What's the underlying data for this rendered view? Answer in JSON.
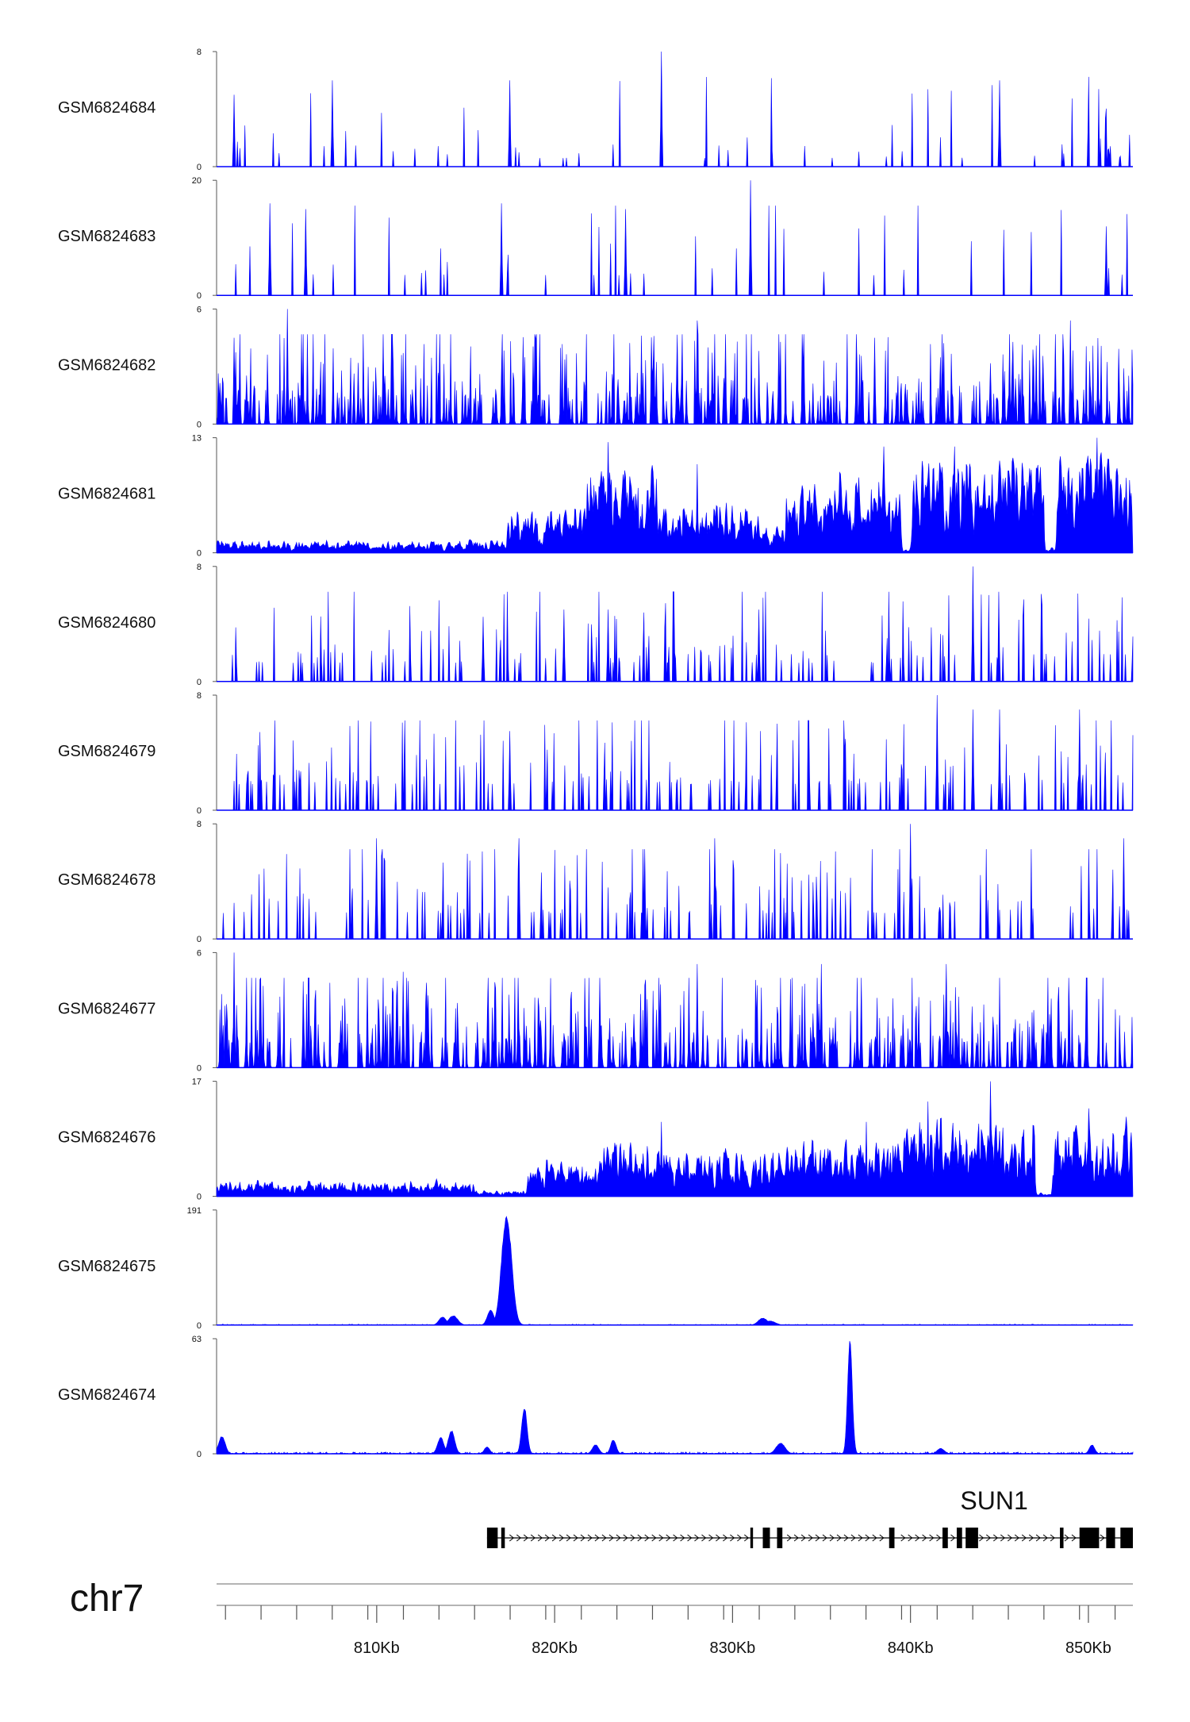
{
  "chart_data": {
    "type": "area",
    "title": "",
    "chromosome": "chr7",
    "xlim": [
      801000,
      852500
    ],
    "x_axis": {
      "ticks": [
        {
          "pos": 810000,
          "label": "810Kb"
        },
        {
          "pos": 820000,
          "label": "820Kb"
        },
        {
          "pos": 830000,
          "label": "830Kb"
        },
        {
          "pos": 840000,
          "label": "840Kb"
        },
        {
          "pos": 850000,
          "label": "850Kb"
        }
      ],
      "minor_ticks": [
        801500,
        803500,
        805500,
        807500,
        809500,
        811500,
        813500,
        815500,
        817500,
        819500,
        821500,
        823500,
        825500,
        827500,
        829500,
        831500,
        833500,
        835500,
        837500,
        839500,
        841500,
        843500,
        845500,
        847500,
        849500,
        851500
      ]
    },
    "gene": {
      "name": "SUN1",
      "start": 816200,
      "end": 852500,
      "strand": "+",
      "exons": [
        {
          "start": 816200,
          "end": 816800
        },
        {
          "start": 817000,
          "end": 817200
        },
        {
          "start": 831000,
          "end": 831150
        },
        {
          "start": 831700,
          "end": 832100
        },
        {
          "start": 832500,
          "end": 832800
        },
        {
          "start": 838800,
          "end": 839100
        },
        {
          "start": 841800,
          "end": 842100
        },
        {
          "start": 842600,
          "end": 842900
        },
        {
          "start": 843100,
          "end": 843800
        },
        {
          "start": 848400,
          "end": 848600
        },
        {
          "start": 849500,
          "end": 850600
        },
        {
          "start": 851000,
          "end": 851500
        },
        {
          "start": 851800,
          "end": 852500
        }
      ]
    },
    "series": [
      {
        "name": "GSM6824684",
        "ymax_label": "8",
        "ymin_label": "0",
        "ylim": [
          0,
          8
        ],
        "pattern": "sparse",
        "density": 0.06,
        "base": 0.6,
        "peaks": [
          [
            826000,
            8
          ],
          [
            845000,
            6
          ],
          [
            817500,
            6
          ],
          [
            807500,
            6
          ],
          [
            802000,
            5
          ]
        ]
      },
      {
        "name": "GSM6824683",
        "ymax_label": "20",
        "ymin_label": "0",
        "ylim": [
          0,
          20
        ],
        "pattern": "sparse",
        "density": 0.045,
        "base": 3.5,
        "peaks": [
          [
            831000,
            20
          ],
          [
            804000,
            16
          ],
          [
            817000,
            16
          ],
          [
            824000,
            15
          ],
          [
            806000,
            15
          ],
          [
            851000,
            12
          ]
        ]
      },
      {
        "name": "GSM6824682",
        "ymax_label": "6",
        "ymin_label": "0",
        "ylim": [
          0,
          6
        ],
        "pattern": "dense",
        "density": 0.3,
        "base": 1.2,
        "peaks": [
          [
            805000,
            6
          ],
          [
            828000,
            5.4
          ],
          [
            849000,
            5.4
          ],
          [
            802000,
            4.5
          ],
          [
            838000,
            4.5
          ]
        ]
      },
      {
        "name": "GSM6824681",
        "ymax_label": "13",
        "ymin_label": "0",
        "ylim": [
          0,
          13
        ],
        "pattern": "regional",
        "regions": [
          [
            801000,
            817300,
            1.2
          ],
          [
            817300,
            821800,
            4.5
          ],
          [
            821800,
            825800,
            8.5
          ],
          [
            825800,
            831500,
            5.0
          ],
          [
            831500,
            833000,
            2.5
          ],
          [
            833000,
            839500,
            7.5
          ],
          [
            839500,
            840000,
            0.5
          ],
          [
            840000,
            847500,
            10.0
          ],
          [
            847500,
            848200,
            0.5
          ],
          [
            848200,
            852500,
            10.5
          ]
        ],
        "peaks": [
          [
            823000,
            12.5
          ],
          [
            838500,
            12
          ],
          [
            842500,
            12
          ],
          [
            850500,
            13
          ],
          [
            828000,
            10
          ]
        ]
      },
      {
        "name": "GSM6824680",
        "ymax_label": "8",
        "ymin_label": "0",
        "ylim": [
          0,
          8
        ],
        "pattern": "sparse",
        "density": 0.14,
        "base": 1.3,
        "peaks": [
          [
            843500,
            8
          ],
          [
            831500,
            5
          ],
          [
            823000,
            5
          ],
          [
            820500,
            5
          ],
          [
            816000,
            4.5
          ]
        ]
      },
      {
        "name": "GSM6824679",
        "ymax_label": "8",
        "ymin_label": "0",
        "ylim": [
          0,
          8
        ],
        "pattern": "sparse",
        "density": 0.16,
        "base": 1.8,
        "peaks": [
          [
            841500,
            8
          ],
          [
            843500,
            7
          ],
          [
            845000,
            7
          ],
          [
            849500,
            7
          ],
          [
            817500,
            5.5
          ]
        ]
      },
      {
        "name": "GSM6824678",
        "ymax_label": "8",
        "ymin_label": "0",
        "ylim": [
          0,
          8
        ],
        "pattern": "sparse",
        "density": 0.16,
        "base": 1.8,
        "peaks": [
          [
            840000,
            8
          ],
          [
            818000,
            7
          ],
          [
            829000,
            7
          ],
          [
            852000,
            7
          ],
          [
            810000,
            7
          ]
        ]
      },
      {
        "name": "GSM6824677",
        "ymax_label": "6",
        "ymin_label": "0",
        "ylim": [
          0,
          6
        ],
        "pattern": "dense",
        "density": 0.3,
        "base": 1.3,
        "peaks": [
          [
            802000,
            6
          ],
          [
            828000,
            5.4
          ],
          [
            835000,
            5.4
          ],
          [
            842000,
            5.4
          ],
          [
            811500,
            5
          ]
        ]
      },
      {
        "name": "GSM6824676",
        "ymax_label": "17",
        "ymin_label": "0",
        "ylim": [
          0,
          17
        ],
        "pattern": "regional",
        "regions": [
          [
            801000,
            815500,
            2.0
          ],
          [
            815500,
            818500,
            0.8
          ],
          [
            818500,
            822500,
            4.5
          ],
          [
            822500,
            826000,
            7.0
          ],
          [
            826000,
            834000,
            6.0
          ],
          [
            834000,
            840000,
            8.0
          ],
          [
            840000,
            847000,
            10.0
          ],
          [
            847000,
            848000,
            0.5
          ],
          [
            848000,
            852500,
            9.0
          ]
        ],
        "peaks": [
          [
            844500,
            17
          ],
          [
            841000,
            14
          ],
          [
            826000,
            11
          ],
          [
            850000,
            13
          ],
          [
            837500,
            11
          ]
        ]
      },
      {
        "name": "GSM6824675",
        "ymax_label": "191",
        "ymin_label": "0",
        "ylim": [
          0,
          191
        ],
        "pattern": "peaks",
        "base": 1.5,
        "gauss": [
          [
            817300,
            188,
            280
          ],
          [
            816400,
            26,
            180
          ],
          [
            814300,
            16,
            250
          ],
          [
            813700,
            14,
            200
          ],
          [
            831700,
            12,
            250
          ],
          [
            832100,
            7,
            300
          ]
        ]
      },
      {
        "name": "GSM6824674",
        "ymax_label": "63",
        "ymin_label": "0",
        "ylim": [
          0,
          63
        ],
        "pattern": "peaks",
        "base": 1.0,
        "gauss": [
          [
            836600,
            63,
            130
          ],
          [
            818300,
            26,
            150
          ],
          [
            814200,
            13,
            180
          ],
          [
            813600,
            9,
            180
          ],
          [
            823300,
            8,
            150
          ],
          [
            822300,
            5,
            180
          ],
          [
            832700,
            6,
            250
          ],
          [
            801300,
            10,
            180
          ],
          [
            816200,
            4,
            150
          ],
          [
            841700,
            3,
            200
          ],
          [
            850200,
            5,
            150
          ]
        ]
      }
    ]
  }
}
